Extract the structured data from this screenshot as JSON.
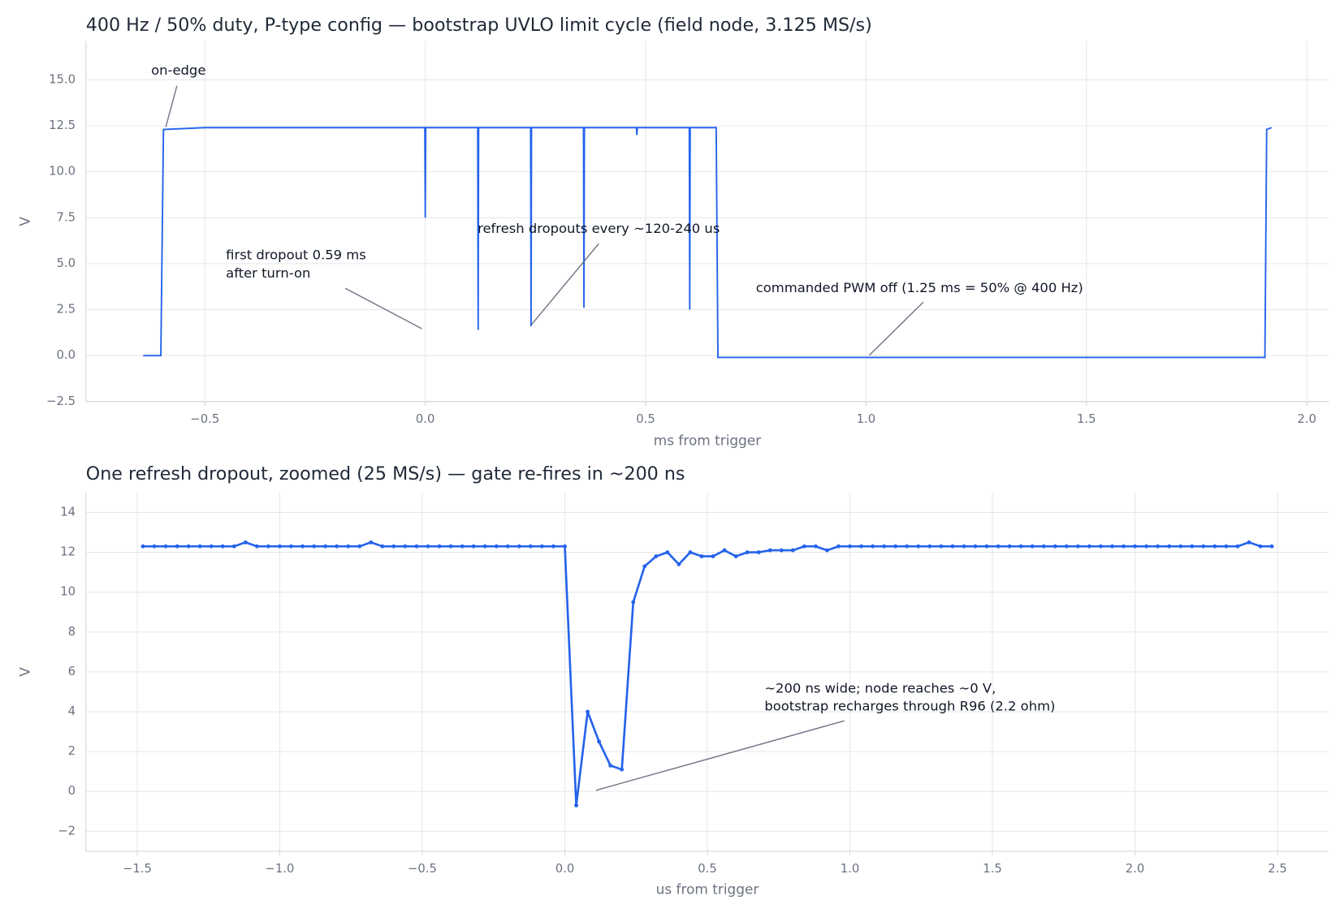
{
  "chart_data": [
    {
      "type": "line",
      "title": "400 Hz / 50% duty, P-type config — bootstrap UVLO limit cycle (field node, 3.125 MS/s)",
      "x_label": "ms from trigger",
      "y_label": "V",
      "x": [
        -0.64,
        -0.6,
        -0.594,
        -0.5,
        -0.3,
        -0.1,
        -0.001,
        0,
        0.001,
        0.119,
        0.12,
        0.121,
        0.239,
        0.24,
        0.241,
        0.359,
        0.36,
        0.361,
        0.479,
        0.48,
        0.481,
        0.599,
        0.6,
        0.601,
        0.66,
        0.664,
        1.0,
        1.5,
        1.905,
        1.909,
        1.92
      ],
      "series": [
        {
          "color": "#2563eb",
          "values": [
            0,
            0,
            12.3,
            12.4,
            12.4,
            12.4,
            12.4,
            7.5,
            12.4,
            12.4,
            1.4,
            12.4,
            12.4,
            1.6,
            12.4,
            12.4,
            2.6,
            12.4,
            12.4,
            12,
            12.4,
            12.4,
            2.5,
            12.4,
            12.4,
            -0.1,
            -0.1,
            -0.1,
            -0.1,
            12.3,
            12.4
          ]
        }
      ],
      "xlim": [
        -0.77,
        2.05
      ],
      "xticks": [
        {
          "value": -0.5,
          "label": "−0.5"
        },
        {
          "value": 0,
          "label": "0.0"
        },
        0.5,
        {
          "value": 1,
          "label": "1.0"
        },
        1.5,
        {
          "value": 2,
          "label": "2.0"
        }
      ],
      "ylim": [
        -2.5,
        17.1
      ],
      "yticks": [
        {
          "value": -2.5,
          "label": "−2.5"
        },
        {
          "value": 0,
          "label": "0.0"
        },
        2.5,
        {
          "value": 5,
          "label": "5.0"
        },
        7.5,
        {
          "value": 10,
          "label": "10.0"
        },
        12.5,
        {
          "value": 15,
          "label": "15.0"
        }
      ],
      "grid": true,
      "markers": false,
      "annotations": [
        [
          "on-edge"
        ],
        [
          "first dropout 0.59 ms",
          "after turn-on"
        ],
        [
          "refresh dropouts every ~120-240 us"
        ],
        [
          "commanded PWM off (1.25 ms = 50% @ 400 Hz)"
        ]
      ]
    },
    {
      "type": "line",
      "title": "One refresh dropout, zoomed (25 MS/s) — gate re-fires in ~200 ns",
      "x_label": "us from trigger",
      "y_label": "V",
      "x": [
        -1.48,
        -1.44,
        -1.4,
        -1.36,
        -1.32,
        -1.28,
        -1.24,
        -1.2,
        -1.16,
        -1.12,
        -1.08,
        -1.04,
        -1,
        -0.96,
        -0.92,
        -0.88,
        -0.84,
        -0.8,
        -0.76,
        -0.72,
        -0.68,
        -0.64,
        -0.6,
        -0.56,
        -0.52,
        -0.48,
        -0.44,
        -0.4,
        -0.36,
        -0.32,
        -0.28,
        -0.24,
        -0.2,
        -0.16,
        -0.12,
        -0.08,
        -0.04,
        0,
        0.04,
        0.08,
        0.12,
        0.16,
        0.2,
        0.24,
        0.28,
        0.32,
        0.36,
        0.4,
        0.44,
        0.48,
        0.52,
        0.56,
        0.6,
        0.64,
        0.68,
        0.72,
        0.76,
        0.8,
        0.84,
        0.88,
        0.92,
        0.96,
        1,
        1.04,
        1.08,
        1.12,
        1.16,
        1.2,
        1.24,
        1.28,
        1.32,
        1.36,
        1.4,
        1.44,
        1.48,
        1.52,
        1.56,
        1.6,
        1.64,
        1.68,
        1.72,
        1.76,
        1.8,
        1.84,
        1.88,
        1.92,
        1.96,
        2,
        2.04,
        2.08,
        2.12,
        2.16,
        2.2,
        2.24,
        2.28,
        2.32,
        2.36,
        2.4,
        2.44,
        2.48
      ],
      "series": [
        {
          "color": "#2563eb",
          "values": [
            12.3,
            12.3,
            12.3,
            12.3,
            12.3,
            12.3,
            12.3,
            12.3,
            12.3,
            12.5,
            12.3,
            12.3,
            12.3,
            12.3,
            12.3,
            12.3,
            12.3,
            12.3,
            12.3,
            12.3,
            12.5,
            12.3,
            12.3,
            12.3,
            12.3,
            12.3,
            12.3,
            12.3,
            12.3,
            12.3,
            12.3,
            12.3,
            12.3,
            12.3,
            12.3,
            12.3,
            12.3,
            12.3,
            -0.7,
            4.0,
            2.5,
            1.3,
            1.1,
            9.5,
            11.3,
            11.8,
            12.0,
            11.4,
            12.0,
            11.8,
            11.8,
            12.1,
            11.8,
            12.0,
            12.0,
            12.1,
            12.1,
            12.1,
            12.3,
            12.3,
            12.1,
            12.3,
            12.3,
            12.3,
            12.3,
            12.3,
            12.3,
            12.3,
            12.3,
            12.3,
            12.3,
            12.3,
            12.3,
            12.3,
            12.3,
            12.3,
            12.3,
            12.3,
            12.3,
            12.3,
            12.3,
            12.3,
            12.3,
            12.3,
            12.3,
            12.3,
            12.3,
            12.3,
            12.3,
            12.3,
            12.3,
            12.3,
            12.3,
            12.3,
            12.3,
            12.3,
            12.3,
            12.5,
            12.3,
            12.3
          ]
        }
      ],
      "xlim": [
        -1.68,
        2.68
      ],
      "xticks": [
        {
          "value": -1.5,
          "label": "−1.5"
        },
        {
          "value": -1,
          "label": "−1.0"
        },
        {
          "value": -0.5,
          "label": "−0.5"
        },
        {
          "value": 0,
          "label": "0.0"
        },
        0.5,
        {
          "value": 1,
          "label": "1.0"
        },
        1.5,
        {
          "value": 2,
          "label": "2.0"
        },
        2.5
      ],
      "ylim": [
        -3,
        15
      ],
      "yticks": [
        {
          "value": -2,
          "label": "−2"
        },
        0,
        2,
        4,
        6,
        8,
        10,
        12,
        14
      ],
      "grid": true,
      "markers": true,
      "annotations": [
        [
          "~200 ns wide; node reaches ~0 V,",
          "bootstrap recharges through R96 (2.2 ohm)"
        ]
      ]
    }
  ]
}
